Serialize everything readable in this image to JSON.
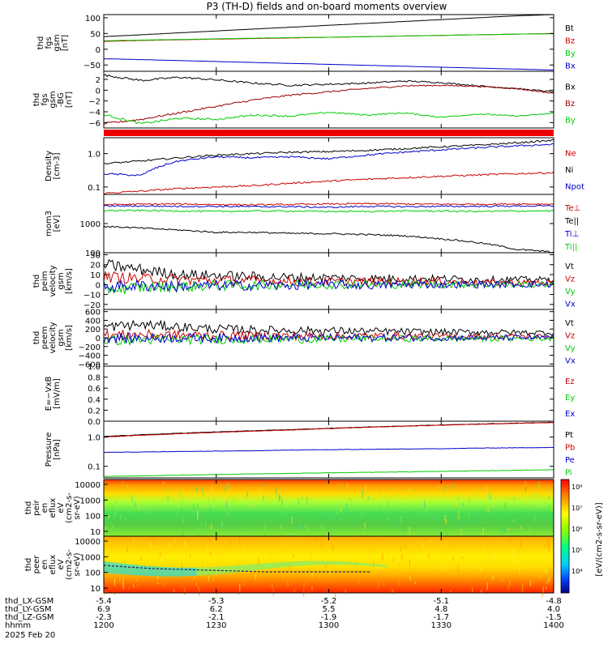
{
  "chart_data": {
    "type": "line",
    "title": "P3 (TH-D) fields and on-board moments overview",
    "x_ticks": [
      "1200",
      "1230",
      "1300",
      "1330",
      "1400"
    ],
    "ephemeris": {
      "labels": [
        "thd_LX-GSM",
        "thd_LY-GSM",
        "thd_LZ-GSM",
        "hhmm",
        "2025 Feb 20"
      ],
      "rows": [
        [
          "-5.4",
          "-5.3",
          "-5.2",
          "-5.1",
          "-4.8"
        ],
        [
          "6.9",
          "6.2",
          "5.5",
          "4.8",
          "4.0"
        ],
        [
          "-2.3",
          "-2.1",
          "-1.9",
          "-1.7",
          "-1.5"
        ]
      ],
      "hhmm": [
        "1200",
        "1230",
        "1300",
        "1330",
        "1400"
      ]
    },
    "panels": [
      {
        "id": "fgs",
        "ylabel": [
          "thd",
          "fgs",
          "gsm",
          "[nT]"
        ],
        "ylim": [
          -70,
          110
        ],
        "scale": "linear",
        "ticks": [
          "100",
          "50",
          "0",
          "−50"
        ],
        "tick_values": [
          100,
          50,
          0,
          -50
        ],
        "series": [
          {
            "name": "Bt",
            "color": "#000000",
            "values": [
              40,
              46,
              52,
              58,
              64,
              70,
              76,
              82,
              88,
              94,
              100,
              106,
              110
            ]
          },
          {
            "name": "Bz",
            "color": "#cc0000",
            "values": [
              25,
              28,
              30,
              32,
              34,
              36,
              38,
              40,
              42,
              44,
              46,
              48,
              50
            ]
          },
          {
            "name": "By",
            "color": "#00cc00",
            "values": [
              27,
              29,
              31,
              33,
              35,
              37,
              38,
              40,
              42,
              44,
              46,
              48,
              49
            ]
          },
          {
            "name": "Bx",
            "color": "#0000cc",
            "values": [
              -30,
              -33,
              -36,
              -39,
              -42,
              -45,
              -48,
              -51,
              -54,
              -57,
              -60,
              -63,
              -66
            ]
          }
        ]
      },
      {
        "id": "fgs-dsl",
        "ylabel": [
          "thd",
          "fgs",
          "gsm",
          "-BG",
          "[nT]"
        ],
        "ylim": [
          -7,
          3.5
        ],
        "scale": "linear",
        "ticks": [
          "2",
          "0",
          "−2",
          "−4",
          "−6"
        ],
        "tick_values": [
          2,
          0,
          -2,
          -4,
          -6
        ],
        "series": [
          {
            "name": "Bx",
            "color": "#000000",
            "values": [
              2.8,
              1.8,
              2.4,
              1.9,
              1.3,
              0.9,
              1.1,
              1.3,
              1.7,
              1.4,
              0.8,
              0.3,
              -0.3
            ]
          },
          {
            "name": "Bz",
            "color": "#990000",
            "values": [
              -6.2,
              -5.4,
              -4.2,
              -3.0,
              -1.8,
              -0.9,
              -0.3,
              0.3,
              0.8,
              0.9,
              0.7,
              0.3,
              -0.6
            ]
          },
          {
            "name": "By",
            "color": "#00cc00",
            "values": [
              -4.5,
              -6.2,
              -5.2,
              -5.4,
              -4.6,
              -4.8,
              -4.1,
              -4.6,
              -4.2,
              -5.0,
              -4.4,
              -4.8,
              -4.3
            ]
          }
        ]
      },
      {
        "id": "density",
        "ylabel": [
          "Density",
          "[cm-3]"
        ],
        "ylim": [
          0.06,
          3.0
        ],
        "scale": "log",
        "ticks": [
          "1.0",
          "0.1"
        ],
        "tick_values": [
          1.0,
          0.1
        ],
        "series": [
          {
            "name": "Ne",
            "color": "#cc0000",
            "values": [
              0.065,
              0.075,
              0.09,
              0.1,
              0.11,
              0.13,
              0.15,
              0.17,
              0.19,
              0.21,
              0.23,
              0.25,
              0.27
            ]
          },
          {
            "name": "Ni",
            "color": "#000000",
            "values": [
              0.5,
              0.6,
              0.75,
              0.9,
              1.0,
              1.1,
              1.15,
              1.25,
              1.4,
              1.6,
              1.8,
              2.1,
              2.5
            ]
          },
          {
            "name": "Npot",
            "color": "#0000cc",
            "values": [
              0.25,
              0.22,
              0.6,
              0.8,
              0.75,
              0.8,
              0.7,
              0.9,
              1.1,
              1.3,
              1.5,
              1.7,
              1.9
            ]
          }
        ]
      },
      {
        "id": "moms",
        "ylabel": [
          "mom3",
          "[eV]"
        ],
        "ylim": [
          100,
          10000
        ],
        "scale": "log",
        "ticks": [
          "1000",
          "100"
        ],
        "tick_values": [
          1000,
          100
        ],
        "series": [
          {
            "name": "Te⊥",
            "color": "#cc0000",
            "values": [
              4500,
              4600,
              4700,
              4500,
              4400,
              4500,
              4700,
              4800,
              4700,
              4600,
              4600,
              4700,
              4650
            ]
          },
          {
            "name": "Te||",
            "color": "#000000",
            "values": [
              800,
              700,
              600,
              500,
              500,
              460,
              450,
              420,
              380,
              300,
              220,
              130,
              105
            ]
          },
          {
            "name": "Ti⊥",
            "color": "#0000cc",
            "values": [
              4000,
              4000,
              3900,
              3900,
              3800,
              3800,
              3600,
              3900,
              3800,
              3900,
              3900,
              4000,
              4000
            ]
          },
          {
            "name": "Ti||",
            "color": "#00cc00",
            "values": [
              2800,
              2800,
              2700,
              2600,
              2700,
              2700,
              2600,
              2600,
              2700,
              2700,
              2600,
              2700,
              2700
            ]
          }
        ]
      },
      {
        "id": "peim-vel",
        "ylabel": [
          "thd",
          "peim",
          "velocity",
          "gsm",
          "[km/s]"
        ],
        "ylim": [
          -25,
          32
        ],
        "scale": "linear",
        "ticks": [
          "30",
          "20",
          "10",
          "0",
          "−10",
          "−20"
        ],
        "tick_values": [
          30,
          20,
          10,
          0,
          -10,
          -20
        ],
        "series": [
          {
            "name": "Vt",
            "color": "#000000",
            "values": [
              20,
              15,
              10,
              9,
              8,
              7,
              7,
              6,
              6,
              6,
              5,
              5,
              5
            ]
          },
          {
            "name": "Vz",
            "color": "#cc0000",
            "values": [
              8,
              6,
              5,
              4,
              4,
              3,
              3,
              3,
              3,
              3,
              2,
              2,
              2
            ]
          },
          {
            "name": "Vy",
            "color": "#00cc00",
            "values": [
              -5,
              -3,
              -2,
              -1,
              -1,
              0,
              0,
              0,
              0,
              0,
              0,
              0,
              0
            ]
          },
          {
            "name": "Vx",
            "color": "#0000cc",
            "values": [
              -2,
              -1,
              -2,
              -1,
              -1,
              -1,
              0,
              -1,
              0,
              0,
              0,
              0,
              0
            ]
          }
        ]
      },
      {
        "id": "peem-vel",
        "ylabel": [
          "thd",
          "peem",
          "velocity",
          "gsm",
          "[km/s]"
        ],
        "ylim": [
          -650,
          650
        ],
        "scale": "linear",
        "ticks": [
          "600",
          "400",
          "200",
          "0",
          "−200",
          "−400",
          "−600"
        ],
        "tick_values": [
          600,
          400,
          200,
          0,
          -200,
          -400,
          -600
        ],
        "series": [
          {
            "name": "Vt",
            "color": "#000000",
            "values": [
              250,
              300,
              250,
              200,
              180,
              170,
              160,
              150,
              140,
              130,
              130,
              120,
              120
            ]
          },
          {
            "name": "Vz",
            "color": "#cc0000",
            "values": [
              60,
              70,
              60,
              50,
              50,
              40,
              40,
              40,
              40,
              30,
              30,
              30,
              30
            ]
          },
          {
            "name": "Vy",
            "color": "#00cc00",
            "values": [
              -60,
              -50,
              -40,
              -40,
              -30,
              -30,
              -30,
              -20,
              -20,
              -20,
              -20,
              -20,
              -20
            ]
          },
          {
            "name": "Vx",
            "color": "#0000cc",
            "values": [
              0,
              -10,
              0,
              -10,
              0,
              -10,
              0,
              0,
              0,
              0,
              0,
              0,
              0
            ]
          }
        ]
      },
      {
        "id": "efield",
        "ylabel": [
          "E=−VxB",
          "[mV/m]"
        ],
        "ylim": [
          0,
          1
        ],
        "scale": "linear",
        "ticks": [
          "1.0",
          "0.8",
          "0.6",
          "0.4",
          "0.2",
          "0.0"
        ],
        "tick_values": [
          1.0,
          0.8,
          0.6,
          0.4,
          0.2,
          0.0
        ],
        "series": [
          {
            "name": "Ez",
            "color": "#cc0000",
            "values": []
          },
          {
            "name": "Ey",
            "color": "#00cc00",
            "values": []
          },
          {
            "name": "Ex",
            "color": "#0000cc",
            "values": []
          }
        ]
      },
      {
        "id": "pressure",
        "ylabel": [
          "Pressure",
          "[nPa]"
        ],
        "ylim": [
          0.04,
          3.5
        ],
        "scale": "log",
        "ticks": [
          "1.0",
          "0.1"
        ],
        "tick_values": [
          1.0,
          0.1
        ],
        "series": [
          {
            "name": "Pt",
            "color": "#000000",
            "values": [
              1.05,
              1.2,
              1.35,
              1.5,
              1.65,
              1.8,
              2.0,
              2.2,
              2.4,
              2.6,
              2.8,
              3.0,
              3.2
            ]
          },
          {
            "name": "Pb",
            "color": "#cc0000",
            "values": [
              1.0,
              1.15,
              1.3,
              1.45,
              1.6,
              1.75,
              1.95,
              2.15,
              2.35,
              2.55,
              2.75,
              2.95,
              3.15
            ]
          },
          {
            "name": "Pe",
            "color": "#0000cc",
            "values": [
              0.3,
              0.31,
              0.32,
              0.33,
              0.34,
              0.36,
              0.37,
              0.38,
              0.39,
              0.4,
              0.42,
              0.43,
              0.44
            ]
          },
          {
            "name": "Pi",
            "color": "#00cc00",
            "values": [
              0.045,
              0.047,
              0.05,
              0.052,
              0.055,
              0.057,
              0.06,
              0.062,
              0.064,
              0.067,
              0.07,
              0.073,
              0.076
            ]
          }
        ]
      },
      {
        "id": "peir-spec",
        "type": "heatmap",
        "ylabel": [
          "thd",
          "peir",
          "en",
          "eflux",
          "eV",
          "(cm2-s-",
          "sr-eV)"
        ],
        "ticks": [
          "10000",
          "1000",
          "100",
          "10"
        ]
      },
      {
        "id": "peer-spec",
        "type": "heatmap",
        "ylabel": [
          "thd",
          "peer",
          "en",
          "eflux",
          "eV",
          "(cm2-s-",
          "sr-eV)"
        ],
        "ticks": [
          "10000",
          "1000",
          "100",
          "10"
        ]
      }
    ],
    "colorbar": {
      "label": "[eV/(cm2-s-sr-eV)]",
      "tick_values": [
        "10⁸",
        "10⁷",
        "10⁶",
        "10⁵",
        "10⁴"
      ]
    }
  }
}
